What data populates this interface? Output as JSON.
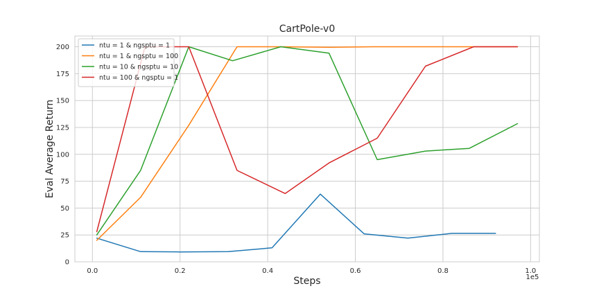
{
  "chart_data": {
    "type": "line",
    "title": "CartPole-v0",
    "xlabel": "Steps",
    "ylabel": "Eval Average Return",
    "x_offset_label": "1e5",
    "xlim": [
      -0.04,
      1.02
    ],
    "ylim": [
      0,
      210
    ],
    "xticks": [
      0.0,
      0.2,
      0.4,
      0.6,
      0.8,
      1.0
    ],
    "xtick_labels": [
      "0.0",
      "0.2",
      "0.4",
      "0.6",
      "0.8",
      "1.0"
    ],
    "yticks": [
      0,
      25,
      50,
      75,
      100,
      125,
      150,
      175,
      200
    ],
    "ytick_labels": [
      "0",
      "25",
      "50",
      "75",
      "100",
      "125",
      "150",
      "175",
      "200"
    ],
    "grid": true,
    "legend_position": "top-left",
    "series": [
      {
        "name": "ntu = 1 & ngsptu = 1",
        "color": "#1f77b4",
        "x": [
          0.01,
          0.11,
          0.2,
          0.31,
          0.41,
          0.52,
          0.62,
          0.72,
          0.82,
          0.92
        ],
        "y": [
          22,
          9.5,
          9.2,
          9.5,
          13,
          63,
          26,
          22,
          26.5,
          26.5
        ]
      },
      {
        "name": "ntu = 1 & ngsptu = 100",
        "color": "#ff7f0e",
        "x": [
          0.01,
          0.11,
          0.22,
          0.33,
          0.43,
          0.54,
          0.64,
          0.76,
          0.87,
          0.97
        ],
        "y": [
          20,
          60,
          127,
          200,
          200,
          199.5,
          200,
          200,
          200,
          200
        ]
      },
      {
        "name": "ntu = 10 & ngsptu = 10",
        "color": "#2ca02c",
        "x": [
          0.01,
          0.11,
          0.22,
          0.32,
          0.43,
          0.54,
          0.65,
          0.76,
          0.86,
          0.97
        ],
        "y": [
          25,
          85,
          200,
          187,
          200,
          194,
          95,
          103,
          105.5,
          128.5
        ]
      },
      {
        "name": "ntu = 100 & ngsptu = 1",
        "color": "#d62728",
        "x": [
          0.01,
          0.12,
          0.22,
          0.33,
          0.44,
          0.54,
          0.65,
          0.76,
          0.87,
          0.97
        ],
        "y": [
          28,
          200,
          200,
          85,
          63.5,
          92,
          115,
          182,
          200,
          200
        ]
      }
    ]
  }
}
